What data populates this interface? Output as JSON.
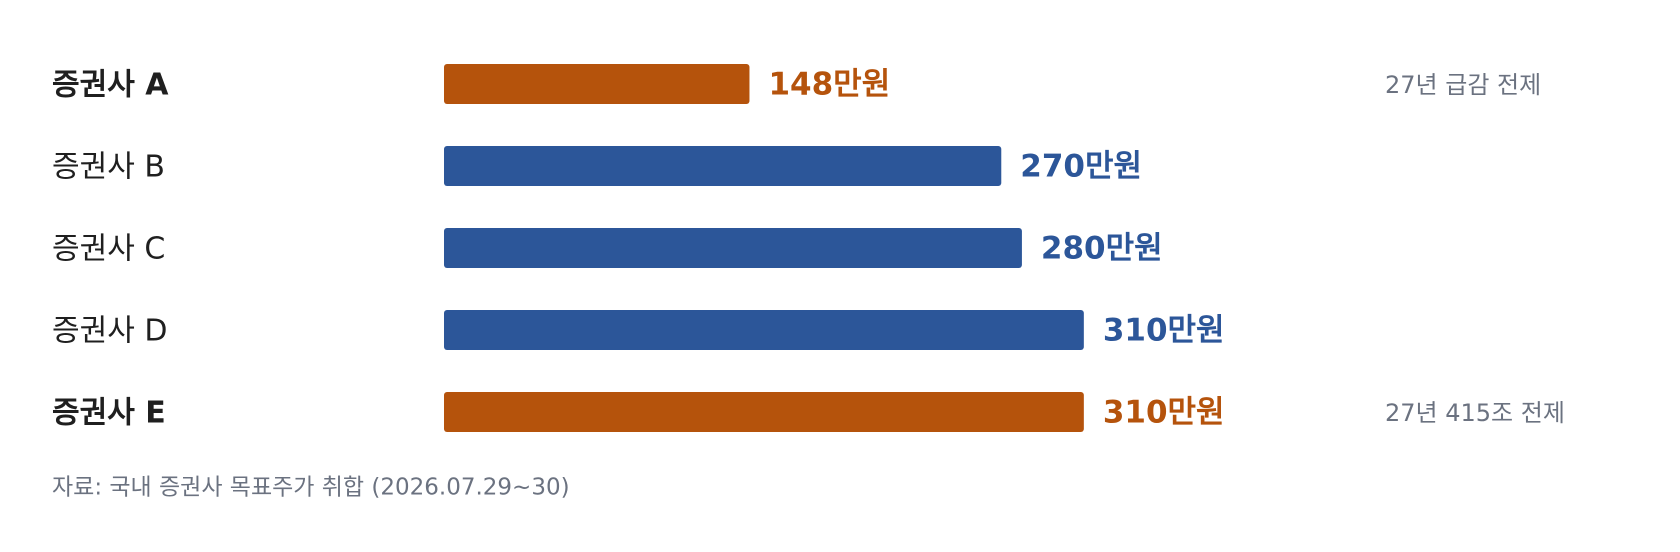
{
  "chart_data": {
    "type": "bar",
    "orientation": "horizontal",
    "categories": [
      "증권사 A",
      "증권사 B",
      "증권사 C",
      "증권사 D",
      "증권사 E"
    ],
    "values": [
      148,
      270,
      280,
      310,
      310
    ],
    "value_labels": [
      "148만원",
      "270만원",
      "280만원",
      "310만원",
      "310만원"
    ],
    "colors": [
      "#b5530c",
      "#2c5699",
      "#2c5699",
      "#2c5699",
      "#b5530c"
    ],
    "notes": [
      "27년 급감 전제",
      null,
      null,
      null,
      "27년 415조 전제"
    ],
    "xlim": [
      0,
      500
    ],
    "source": "자료: 국내 증권사 목표주가 취합 (2026.07.29~30)"
  }
}
